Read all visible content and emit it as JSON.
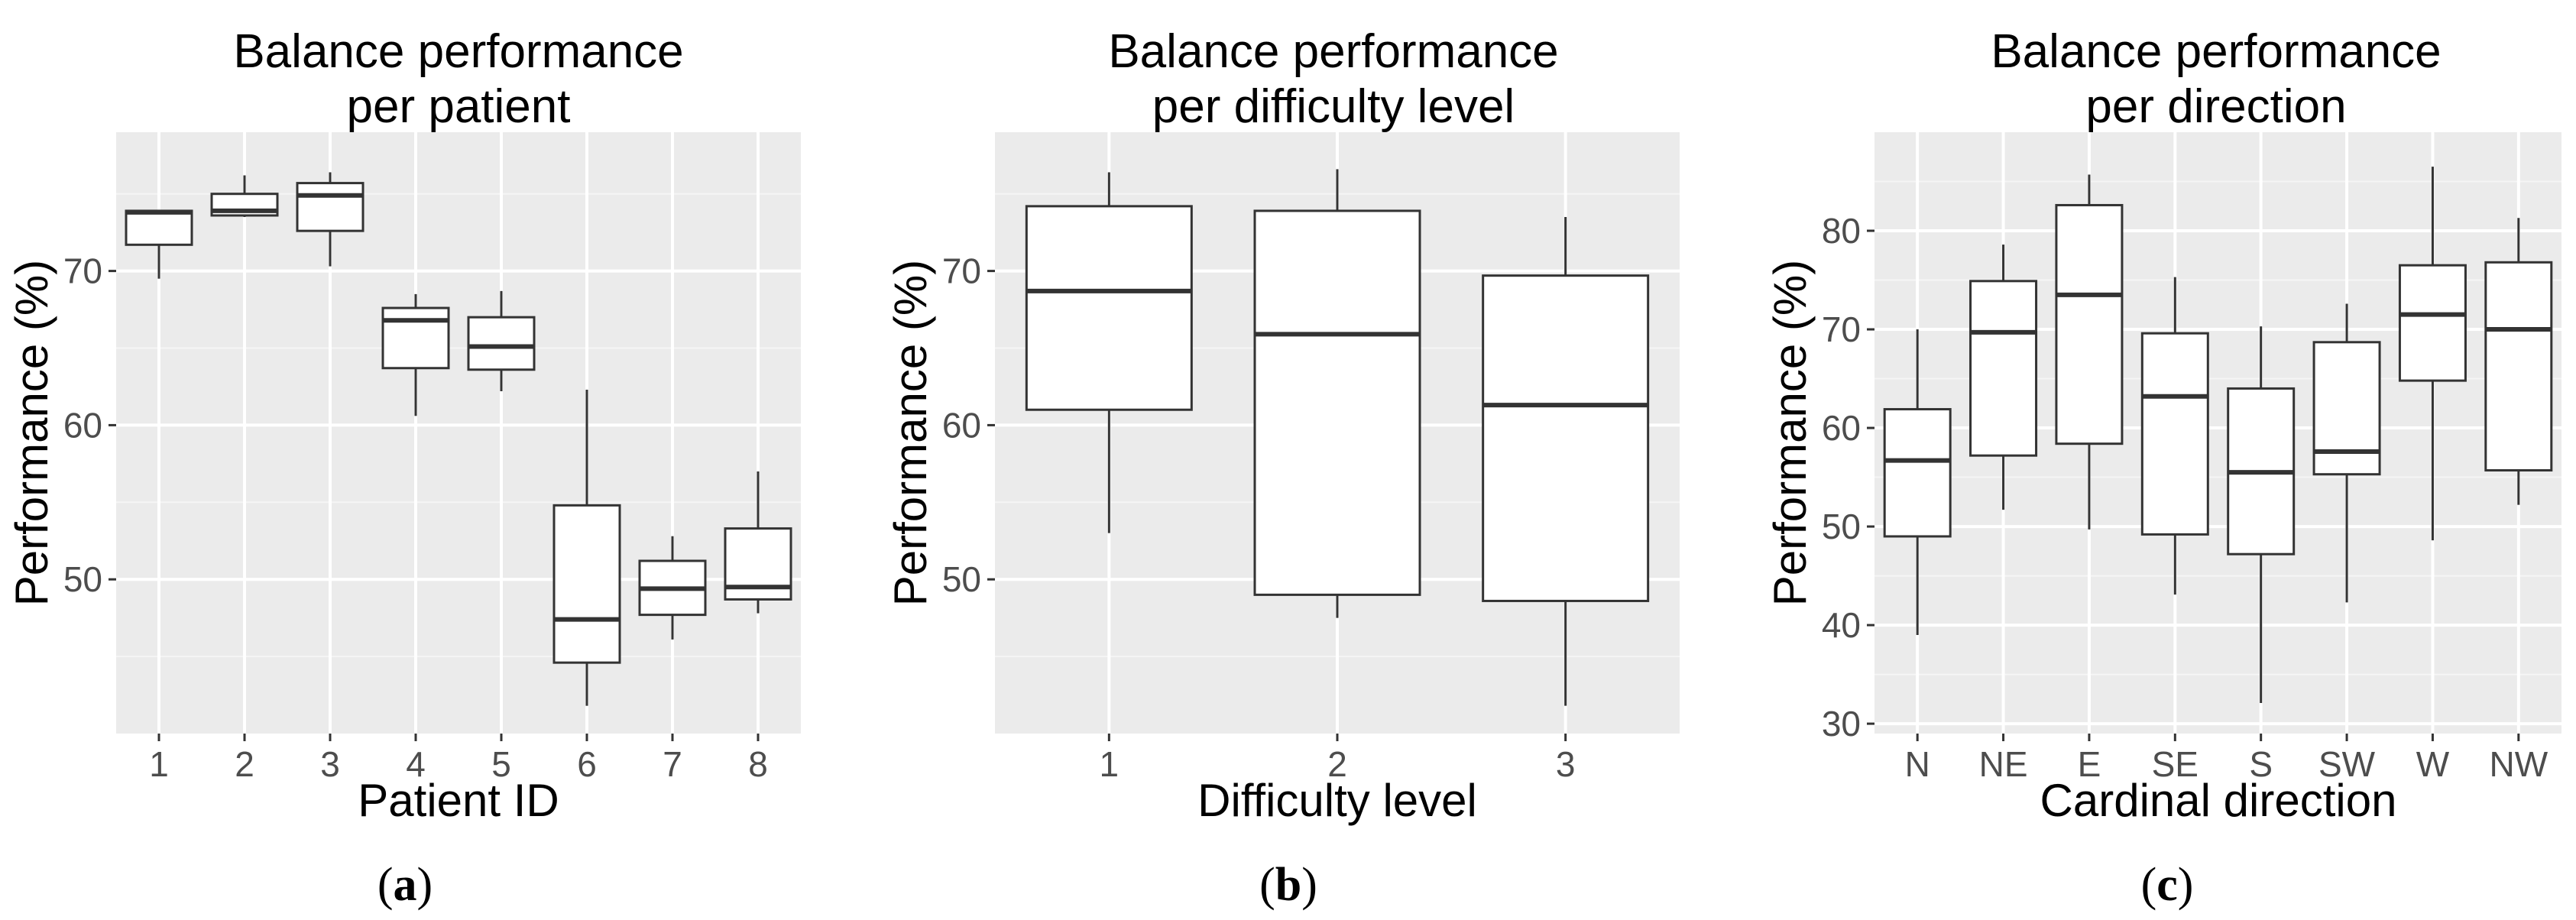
{
  "chart_data": [
    {
      "type": "box",
      "title_lines": [
        "Balance performance",
        "per patient"
      ],
      "xlabel": "Patient ID",
      "ylabel": "Performance (%)",
      "ylim": [
        40,
        79
      ],
      "yticks": [
        50,
        60,
        70
      ],
      "yminor": [
        45,
        55,
        65,
        75
      ],
      "categories": [
        "1",
        "2",
        "3",
        "4",
        "5",
        "6",
        "7",
        "8"
      ],
      "boxes": [
        {
          "min": 69.5,
          "q1": 71.7,
          "median": 73.8,
          "q3": 73.9,
          "max": 73.9
        },
        {
          "min": 73.5,
          "q1": 73.6,
          "median": 73.9,
          "q3": 75.0,
          "max": 76.2
        },
        {
          "min": 70.3,
          "q1": 72.6,
          "median": 74.9,
          "q3": 75.7,
          "max": 76.4
        },
        {
          "min": 60.6,
          "q1": 63.7,
          "median": 66.8,
          "q3": 67.6,
          "max": 68.5
        },
        {
          "min": 62.2,
          "q1": 63.6,
          "median": 65.1,
          "q3": 67.0,
          "max": 68.7
        },
        {
          "min": 41.8,
          "q1": 44.6,
          "median": 47.4,
          "q3": 54.8,
          "max": 62.3
        },
        {
          "min": 46.1,
          "q1": 47.7,
          "median": 49.4,
          "q3": 51.2,
          "max": 52.8
        },
        {
          "min": 47.8,
          "q1": 48.7,
          "median": 49.5,
          "q3": 53.3,
          "max": 57.0
        }
      ],
      "caption": "a"
    },
    {
      "type": "box",
      "title_lines": [
        "Balance performance",
        "per difficulty level"
      ],
      "xlabel": "Difficulty level",
      "ylabel": "Performance (%)",
      "ylim": [
        40,
        79
      ],
      "yticks": [
        50,
        60,
        70
      ],
      "yminor": [
        45,
        55,
        65,
        75
      ],
      "categories": [
        "1",
        "2",
        "3"
      ],
      "boxes": [
        {
          "min": 53.0,
          "q1": 61.0,
          "median": 68.7,
          "q3": 74.2,
          "max": 76.4
        },
        {
          "min": 47.5,
          "q1": 49.0,
          "median": 65.9,
          "q3": 73.9,
          "max": 76.6
        },
        {
          "min": 41.8,
          "q1": 48.6,
          "median": 61.3,
          "q3": 69.7,
          "max": 73.5
        }
      ],
      "caption": "b"
    },
    {
      "type": "box",
      "title_lines": [
        "Balance performance",
        "per direction"
      ],
      "xlabel": "Cardinal direction",
      "ylabel": "Performance (%)",
      "ylim": [
        29,
        90
      ],
      "yticks": [
        30,
        40,
        50,
        60,
        70,
        80
      ],
      "yminor": [
        35,
        45,
        55,
        65,
        75,
        85
      ],
      "categories": [
        "N",
        "NE",
        "E",
        "SE",
        "S",
        "SW",
        "W",
        "NW"
      ],
      "boxes": [
        {
          "min": 39.0,
          "q1": 49.0,
          "median": 56.7,
          "q3": 61.9,
          "max": 70.0
        },
        {
          "min": 51.7,
          "q1": 57.2,
          "median": 69.7,
          "q3": 74.9,
          "max": 78.6
        },
        {
          "min": 49.7,
          "q1": 58.4,
          "median": 73.5,
          "q3": 82.6,
          "max": 85.7
        },
        {
          "min": 43.1,
          "q1": 49.2,
          "median": 63.2,
          "q3": 69.6,
          "max": 75.3
        },
        {
          "min": 32.1,
          "q1": 47.2,
          "median": 55.5,
          "q3": 64.0,
          "max": 70.3
        },
        {
          "min": 42.3,
          "q1": 55.3,
          "median": 57.6,
          "q3": 68.7,
          "max": 72.6
        },
        {
          "min": 48.6,
          "q1": 64.8,
          "median": 71.5,
          "q3": 76.5,
          "max": 86.5
        },
        {
          "min": 52.2,
          "q1": 55.7,
          "median": 70.0,
          "q3": 76.8,
          "max": 81.3
        }
      ],
      "caption": "c"
    }
  ]
}
